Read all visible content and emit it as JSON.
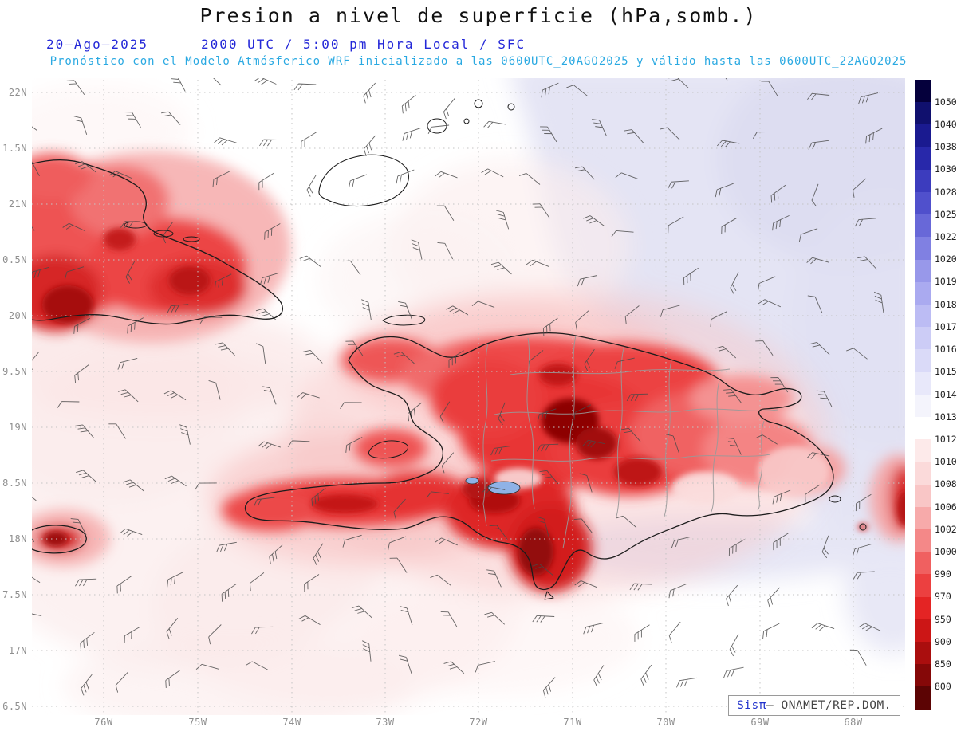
{
  "header": {
    "title": "Presion a nivel de superficie (hPa,somb.)",
    "date": "20–Ago–2025",
    "time": "2000 UTC / 5:00 pm Hora Local / SFC",
    "model_line": "Pronóstico con el Modelo Atmósferico WRF inicializado a las 0600UTC_20AGO2025 y válido hasta las 0600UTC_22AGO2025"
  },
  "map": {
    "lat_labels": [
      "22N",
      "1.5N",
      "21N",
      "0.5N",
      "20N",
      "9.5N",
      "19N",
      "8.5N",
      "18N",
      "7.5N",
      "17N",
      "6.5N"
    ],
    "lon_labels": [
      "76W",
      "75W",
      "74W",
      "73W",
      "72W",
      "71W",
      "70W",
      "69W",
      "68W"
    ]
  },
  "colorbar": {
    "labels": [
      "1050",
      "1040",
      "1038",
      "1030",
      "1028",
      "1025",
      "1022",
      "1020",
      "1019",
      "1018",
      "1017",
      "1016",
      "1015",
      "1014",
      "1013",
      "1012",
      "1010",
      "1008",
      "1006",
      "1002",
      "1000",
      "990",
      "970",
      "950",
      "900",
      "850",
      "800"
    ],
    "colors": [
      "#05003c",
      "#10106e",
      "#1a1a90",
      "#2828aa",
      "#3c3cbe",
      "#5050cc",
      "#6868d8",
      "#8080e2",
      "#9898ea",
      "#aaaaf0",
      "#bcbcf4",
      "#ccccf6",
      "#dadaf8",
      "#e8e8fa",
      "#f4f4fc",
      "#ffffff",
      "#fdeaea",
      "#fbdada",
      "#f9c6c6",
      "#f7aaaa",
      "#f48888",
      "#f06060",
      "#ec4040",
      "#e42424",
      "#cc1616",
      "#aa0e0e",
      "#850808",
      "#5c0404"
    ]
  },
  "credit": {
    "brand": "Sisπ",
    "text": "– ONAMET/REP.DOM."
  },
  "accents": {
    "header_blue": "#2428d8",
    "header_cyan": "#2aa9e2",
    "low_pressure_red": "#d62525",
    "high_pressure_blue": "#e4e4f4"
  }
}
